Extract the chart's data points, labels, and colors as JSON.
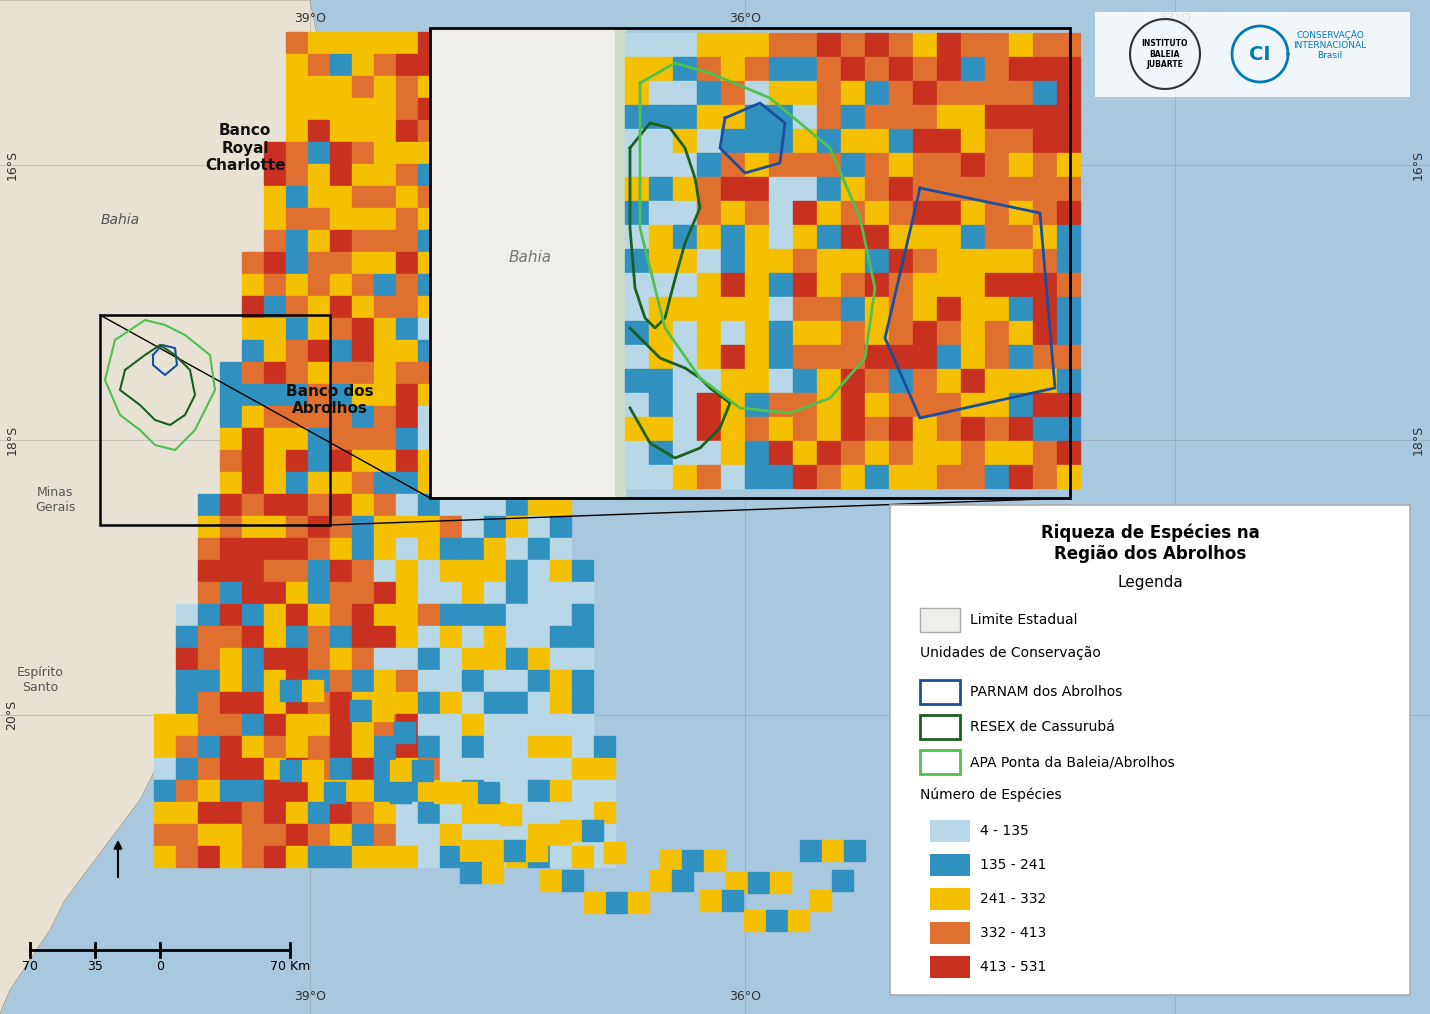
{
  "title": "Riqueza de Espécies na\nRegião dos Abrolhos",
  "legend_title": "Legenda",
  "ocean_color": "#a8c8e0",
  "deep_ocean_color": "#b8d4e8",
  "land_color": "#e8e2d5",
  "land_river_color": "#c8d4c0",
  "species_colors": {
    "c0": "#b8d8e8",
    "c1": "#3090c0",
    "c2": "#f5c000",
    "c3": "#e07030",
    "c4": "#c83020"
  },
  "species_ranges": [
    {
      "range": "4 - 135",
      "color": "#b8d8e8"
    },
    {
      "range": "135 - 241",
      "color": "#3090c0"
    },
    {
      "range": "241 - 332",
      "color": "#f5c000"
    },
    {
      "range": "332 - 413",
      "color": "#e07030"
    },
    {
      "range": "413 - 531",
      "color": "#c83020"
    }
  ],
  "conservation_units": [
    {
      "name": "PARNAM dos Abrolhos",
      "color": "#1a4fa0"
    },
    {
      "name": "RESEX de Cassurubá",
      "color": "#1a6020"
    },
    {
      "name": "APA Ponta da Baleia/Abrolhos",
      "color": "#50c050"
    }
  ],
  "labels": {
    "banco_royal": "Banco\nRoyal\nCharlotte",
    "banco_abrolhos": "Banco dos\nAbrolhos",
    "bahia_state": "Bahia",
    "bahia_inset": "Bahia",
    "minas_gerais": "Minas\nGerais",
    "espirito_santo": "Espírito\nSanto"
  },
  "figsize": [
    14.3,
    10.14
  ],
  "dpi": 100
}
